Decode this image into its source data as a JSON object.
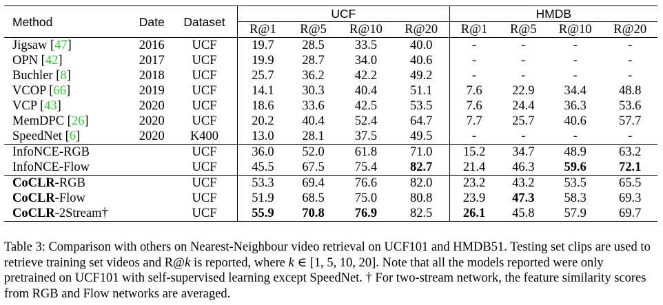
{
  "headers": {
    "method": "Method",
    "date": "Date",
    "dataset": "Dataset",
    "ucf": "UCF",
    "hmdb": "HMDB",
    "r1": "R@1",
    "r5": "R@5",
    "r10": "R@10",
    "r20": "R@20"
  },
  "rows": [
    {
      "method": "Jigsaw",
      "cite": "47",
      "date": "2016",
      "dataset": "UCF",
      "ucf": [
        "19.7",
        "28.5",
        "33.5",
        "40.0"
      ],
      "hmdb": [
        "-",
        "-",
        "-",
        "-"
      ]
    },
    {
      "method": "OPN",
      "cite": "42",
      "date": "2017",
      "dataset": "UCF",
      "ucf": [
        "19.9",
        "28.7",
        "34.0",
        "40.6"
      ],
      "hmdb": [
        "-",
        "-",
        "-",
        "-"
      ]
    },
    {
      "method": "Buchler",
      "cite": "8",
      "date": "2018",
      "dataset": "UCF",
      "ucf": [
        "25.7",
        "36.2",
        "42.2",
        "49.2"
      ],
      "hmdb": [
        "-",
        "-",
        "-",
        "-"
      ]
    },
    {
      "method": "VCOP",
      "cite": "66",
      "date": "2019",
      "dataset": "UCF",
      "ucf": [
        "14.1",
        "30.3",
        "40.4",
        "51.1"
      ],
      "hmdb": [
        "7.6",
        "22.9",
        "34.4",
        "48.8"
      ]
    },
    {
      "method": "VCP",
      "cite": "43",
      "date": "2020",
      "dataset": "UCF",
      "ucf": [
        "18.6",
        "33.6",
        "42.5",
        "53.5"
      ],
      "hmdb": [
        "7.6",
        "24.4",
        "36.3",
        "53.6"
      ]
    },
    {
      "method": "MemDPC",
      "cite": "26",
      "date": "2020",
      "dataset": "UCF",
      "ucf": [
        "20.2",
        "40.4",
        "52.4",
        "64.7"
      ],
      "hmdb": [
        "7.7",
        "25.7",
        "40.6",
        "57.7"
      ]
    },
    {
      "method": "SpeedNet",
      "cite": "6",
      "date": "2020",
      "dataset": "K400",
      "ucf": [
        "13.0",
        "28.1",
        "37.5",
        "49.5"
      ],
      "hmdb": [
        "-",
        "-",
        "-",
        "-"
      ]
    },
    {
      "method": "InfoNCE-RGB",
      "date": "",
      "dataset": "UCF",
      "ucf": [
        "36.0",
        "52.0",
        "61.8",
        "71.0"
      ],
      "hmdb": [
        "15.2",
        "34.7",
        "48.9",
        "63.2"
      ]
    },
    {
      "method": "InfoNCE-Flow",
      "date": "",
      "dataset": "UCF",
      "ucf": [
        "45.5",
        "67.5",
        "75.4",
        "82.7"
      ],
      "hmdb": [
        "21.4",
        "46.3",
        "59.6",
        "72.1"
      ]
    },
    {
      "method_bold": "CoCLR",
      "method_rest": "-RGB",
      "date": "",
      "dataset": "UCF",
      "ucf": [
        "53.3",
        "69.4",
        "76.6",
        "82.0"
      ],
      "hmdb": [
        "23.2",
        "43.2",
        "53.5",
        "65.5"
      ]
    },
    {
      "method_bold": "CoCLR",
      "method_rest": "-Flow",
      "date": "",
      "dataset": "UCF",
      "ucf": [
        "51.9",
        "68.5",
        "75.0",
        "80.8"
      ],
      "hmdb": [
        "23.9",
        "47.3",
        "58.3",
        "69.3"
      ]
    },
    {
      "method_bold": "CoCLR",
      "method_rest": "-2Stream†",
      "date": "",
      "dataset": "UCF",
      "ucf": [
        "55.9",
        "70.8",
        "76.9",
        "82.5"
      ],
      "hmdb": [
        "26.1",
        "45.8",
        "57.9",
        "69.7"
      ]
    }
  ],
  "caption": {
    "p1": "Table 3: Comparison with others on Nearest-Neighbour video retrieval on UCF101 and HMDB51. Testing set clips are used to retrieve training set videos and R@",
    "k1": "k",
    "p2": " is reported, where ",
    "k2": "k",
    "p3": " ∈ [1, 5, 10, 20]. Note that all the models reported were only pretrained on UCF101 with self-supervised learning except SpeedNet. † For two-stream network, the feature similarity scores from RGB and Flow networks are averaged."
  }
}
